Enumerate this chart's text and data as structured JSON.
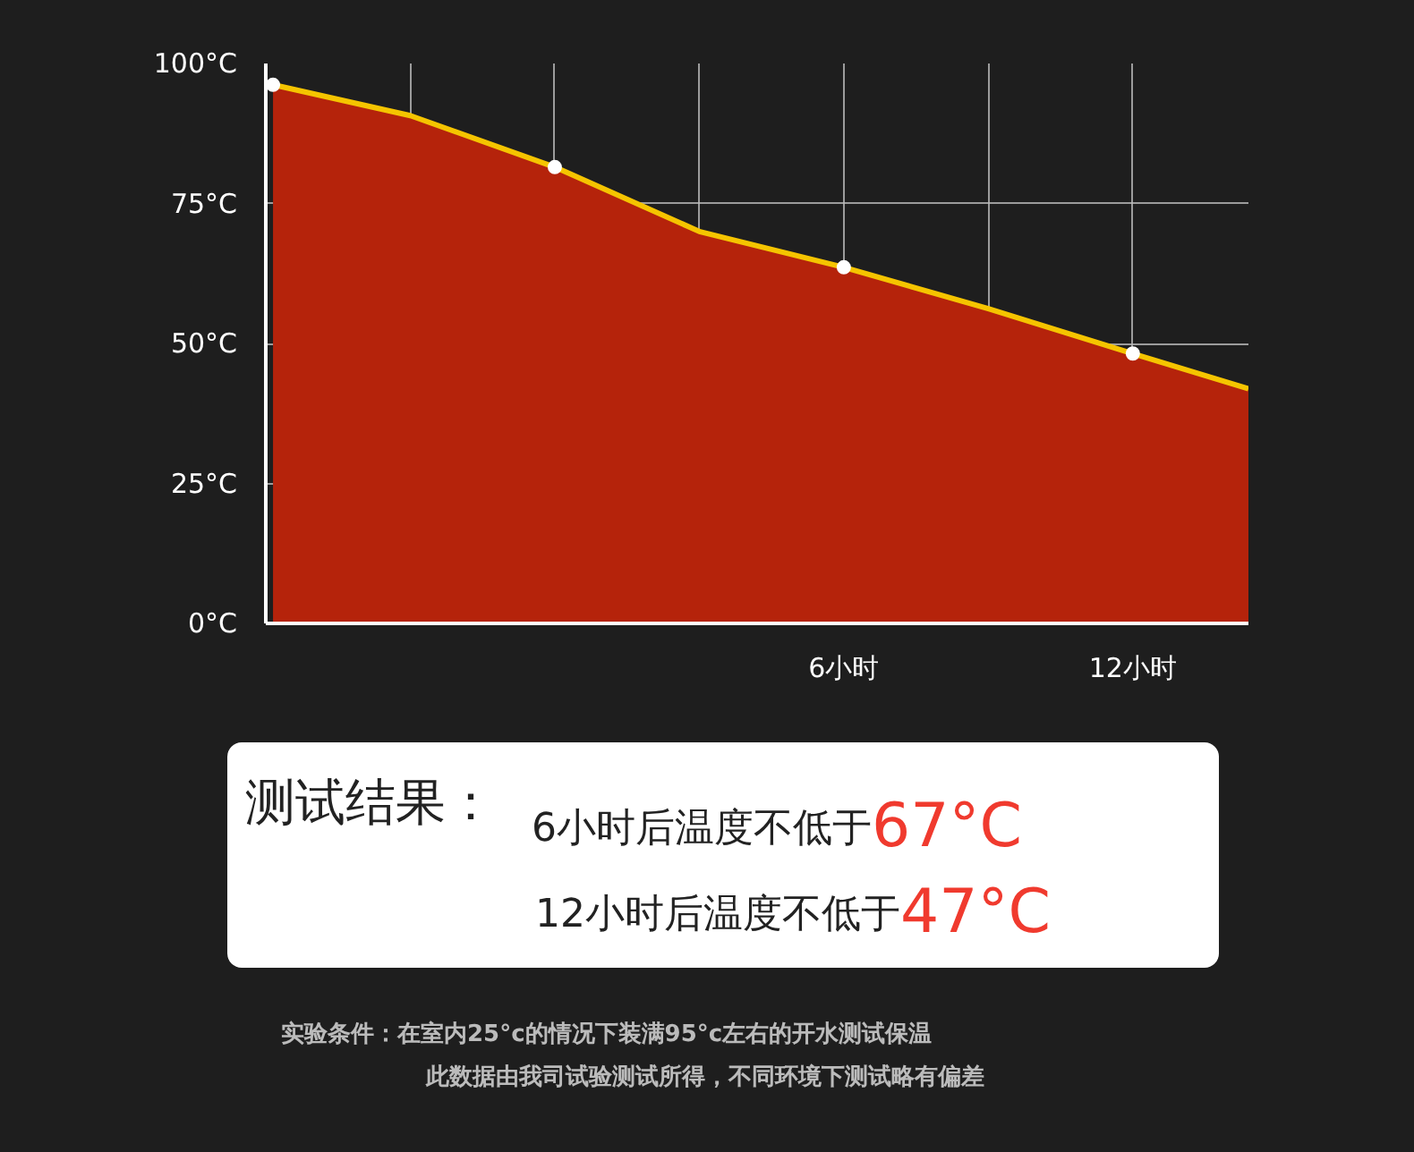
{
  "chart_data": {
    "type": "area",
    "xlim": [
      -6,
      14.4
    ],
    "xticks": [
      {
        "value": -3,
        "label": null
      },
      {
        "value": 0,
        "label": null
      },
      {
        "value": 3,
        "label": null
      },
      {
        "value": 6,
        "label": "6小时"
      },
      {
        "value": 9,
        "label": null
      },
      {
        "value": 12,
        "label": "12小时"
      }
    ],
    "ylim": [
      0,
      100
    ],
    "yticks": [
      {
        "value": 0,
        "label": "0°C"
      },
      {
        "value": 25,
        "label": "25°C"
      },
      {
        "value": 50,
        "label": "50°C"
      },
      {
        "value": 75,
        "label": "75°C"
      },
      {
        "value": 100,
        "label": "100°C"
      }
    ],
    "grid": true,
    "series": [
      {
        "color": "#b5230b",
        "x": [
          -5.85,
          -3,
          0,
          3,
          6,
          9,
          12,
          14.4
        ],
        "values": [
          96.2,
          90.7,
          81.5,
          70.0,
          63.6,
          56.2,
          48.2,
          41.9
        ]
      },
      {
        "type": "scatter",
        "marker": "circle",
        "color": "#ffffff",
        "x": [
          -5.85,
          0,
          6,
          12
        ],
        "values": [
          96.2,
          81.5,
          63.6,
          48.2
        ]
      }
    ],
    "annotations": [
      "测试结果：",
      "6小时后温度不低于",
      "67°C",
      "12小时后温度不低于",
      "47°C",
      "实验条件：在室内25°c的情况下装满95°c左右的开水测试保温",
      "此数据由我司试验测试所得，不同环境下测试略有偏差"
    ]
  }
}
